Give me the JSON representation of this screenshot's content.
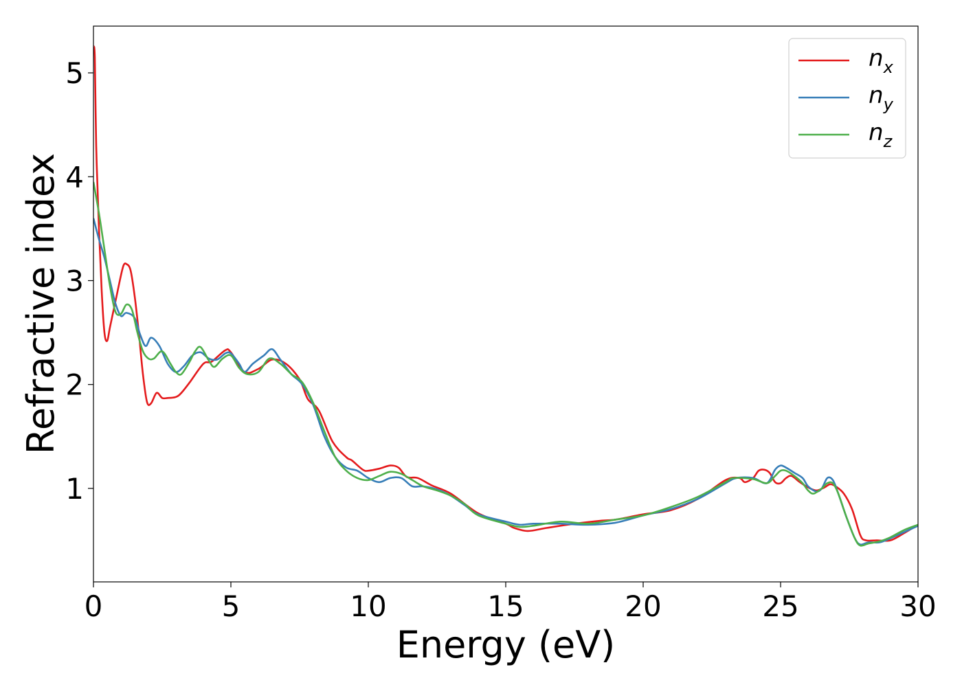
{
  "chart_data": {
    "type": "line",
    "title": "",
    "xlabel": "Energy (eV)",
    "ylabel": "Refractive index",
    "xlim": [
      0,
      30
    ],
    "ylim": [
      0.1,
      5.45
    ],
    "xticks": [
      0,
      5,
      10,
      15,
      20,
      25,
      30
    ],
    "yticks": [
      1,
      2,
      3,
      4,
      5
    ],
    "grid": false,
    "legend_position": "top-right",
    "series": [
      {
        "name": "n_x",
        "label_main": "n",
        "label_sub": "x",
        "color": "#e41a1c",
        "x": [
          0,
          0.05,
          0.1,
          0.2,
          0.3,
          0.4,
          0.5,
          0.6,
          0.8,
          1.0,
          1.1,
          1.2,
          1.35,
          1.5,
          1.65,
          1.8,
          1.95,
          2.1,
          2.3,
          2.5,
          2.7,
          3.0,
          3.2,
          3.5,
          4.0,
          4.3,
          4.8,
          5.0,
          5.5,
          6.0,
          6.5,
          7.0,
          7.5,
          7.8,
          8.2,
          8.7,
          9.2,
          9.4,
          9.8,
          10.0,
          10.4,
          10.8,
          11.1,
          11.4,
          11.8,
          12.3,
          13.0,
          14.0,
          15.0,
          15.3,
          15.8,
          16.5,
          17.5,
          18.5,
          19.0,
          20.0,
          21.0,
          22.0,
          23.0,
          23.5,
          23.7,
          24.0,
          24.2,
          24.4,
          24.6,
          24.8,
          25.0,
          25.2,
          25.4,
          25.7,
          26.0,
          26.3,
          26.6,
          26.8,
          27.0,
          27.3,
          27.6,
          27.9,
          28.1,
          28.5,
          29.0,
          29.5,
          30.0
        ],
        "y": [
          5.25,
          5.15,
          4.3,
          3.5,
          2.9,
          2.5,
          2.42,
          2.55,
          2.8,
          3.05,
          3.15,
          3.16,
          3.1,
          2.85,
          2.5,
          2.1,
          1.83,
          1.82,
          1.92,
          1.87,
          1.87,
          1.88,
          1.92,
          2.02,
          2.2,
          2.22,
          2.33,
          2.31,
          2.12,
          2.15,
          2.24,
          2.2,
          2.05,
          1.86,
          1.75,
          1.45,
          1.3,
          1.27,
          1.18,
          1.17,
          1.19,
          1.22,
          1.2,
          1.11,
          1.1,
          1.03,
          0.95,
          0.76,
          0.66,
          0.62,
          0.59,
          0.62,
          0.66,
          0.69,
          0.7,
          0.75,
          0.79,
          0.9,
          1.08,
          1.1,
          1.06,
          1.1,
          1.17,
          1.18,
          1.15,
          1.06,
          1.05,
          1.1,
          1.12,
          1.06,
          1.01,
          0.98,
          1.01,
          1.04,
          1.02,
          0.95,
          0.8,
          0.55,
          0.5,
          0.5,
          0.5,
          0.57,
          0.65
        ]
      },
      {
        "name": "n_y",
        "label_main": "n",
        "label_sub": "y",
        "color": "#377eb8",
        "x": [
          0,
          0.2,
          0.4,
          0.6,
          0.8,
          1.0,
          1.2,
          1.5,
          1.7,
          1.9,
          2.1,
          2.4,
          2.7,
          3.0,
          3.3,
          3.6,
          3.9,
          4.2,
          4.5,
          4.8,
          5.0,
          5.3,
          5.5,
          5.8,
          6.2,
          6.5,
          6.8,
          7.2,
          7.6,
          8.0,
          8.4,
          8.8,
          9.2,
          9.6,
          10.0,
          10.4,
          10.8,
          11.2,
          11.6,
          12.0,
          12.5,
          13.0,
          13.5,
          14.0,
          15.0,
          15.5,
          16.0,
          17.0,
          18.0,
          19.0,
          20.0,
          21.0,
          22.0,
          23.0,
          23.4,
          24.0,
          24.5,
          24.8,
          25.0,
          25.2,
          25.5,
          25.8,
          26.0,
          26.3,
          26.5,
          26.7,
          26.9,
          27.1,
          27.4,
          27.7,
          27.9,
          28.2,
          28.6,
          29.0,
          29.5,
          30.0
        ],
        "y": [
          3.6,
          3.4,
          3.22,
          3.0,
          2.78,
          2.66,
          2.69,
          2.64,
          2.48,
          2.37,
          2.45,
          2.37,
          2.2,
          2.12,
          2.18,
          2.28,
          2.31,
          2.25,
          2.24,
          2.3,
          2.3,
          2.2,
          2.12,
          2.2,
          2.28,
          2.34,
          2.24,
          2.1,
          2.0,
          1.8,
          1.5,
          1.3,
          1.2,
          1.17,
          1.1,
          1.06,
          1.1,
          1.1,
          1.02,
          1.02,
          0.99,
          0.93,
          0.84,
          0.75,
          0.68,
          0.65,
          0.66,
          0.66,
          0.65,
          0.67,
          0.74,
          0.8,
          0.9,
          1.05,
          1.1,
          1.1,
          1.05,
          1.18,
          1.22,
          1.2,
          1.15,
          1.1,
          1.02,
          0.97,
          1.0,
          1.1,
          1.08,
          0.95,
          0.72,
          0.52,
          0.46,
          0.48,
          0.48,
          0.52,
          0.58,
          0.64
        ]
      },
      {
        "name": "n_z",
        "label_main": "n",
        "label_sub": "z",
        "color": "#4daf4a",
        "x": [
          0,
          0.2,
          0.4,
          0.6,
          0.8,
          1.0,
          1.2,
          1.4,
          1.6,
          1.8,
          2.0,
          2.2,
          2.5,
          2.8,
          3.0,
          3.2,
          3.5,
          3.7,
          3.9,
          4.2,
          4.4,
          4.7,
          5.0,
          5.3,
          5.6,
          6.0,
          6.4,
          6.8,
          7.2,
          7.6,
          8.0,
          8.4,
          8.8,
          9.2,
          9.6,
          10.0,
          10.4,
          10.8,
          11.2,
          11.6,
          12.0,
          12.5,
          13.0,
          13.5,
          14.0,
          15.0,
          15.5,
          16.0,
          17.0,
          18.0,
          19.0,
          20.0,
          21.0,
          22.0,
          23.0,
          23.3,
          24.0,
          24.5,
          24.8,
          25.0,
          25.2,
          25.5,
          25.8,
          26.0,
          26.2,
          26.5,
          26.7,
          26.9,
          27.1,
          27.4,
          27.7,
          27.9,
          28.2,
          28.6,
          29.0,
          29.5,
          30.0
        ],
        "y": [
          3.95,
          3.65,
          3.3,
          2.95,
          2.7,
          2.68,
          2.77,
          2.72,
          2.5,
          2.32,
          2.25,
          2.25,
          2.32,
          2.2,
          2.12,
          2.1,
          2.22,
          2.32,
          2.36,
          2.23,
          2.17,
          2.25,
          2.28,
          2.16,
          2.1,
          2.12,
          2.25,
          2.2,
          2.1,
          2.02,
          1.82,
          1.55,
          1.3,
          1.17,
          1.1,
          1.08,
          1.12,
          1.16,
          1.14,
          1.08,
          1.02,
          0.98,
          0.93,
          0.85,
          0.74,
          0.66,
          0.63,
          0.64,
          0.68,
          0.66,
          0.7,
          0.74,
          0.82,
          0.92,
          1.06,
          1.1,
          1.09,
          1.05,
          1.12,
          1.17,
          1.17,
          1.12,
          1.05,
          0.98,
          0.95,
          1.0,
          1.05,
          1.05,
          0.95,
          0.72,
          0.52,
          0.45,
          0.47,
          0.49,
          0.53,
          0.6,
          0.65
        ]
      }
    ]
  }
}
